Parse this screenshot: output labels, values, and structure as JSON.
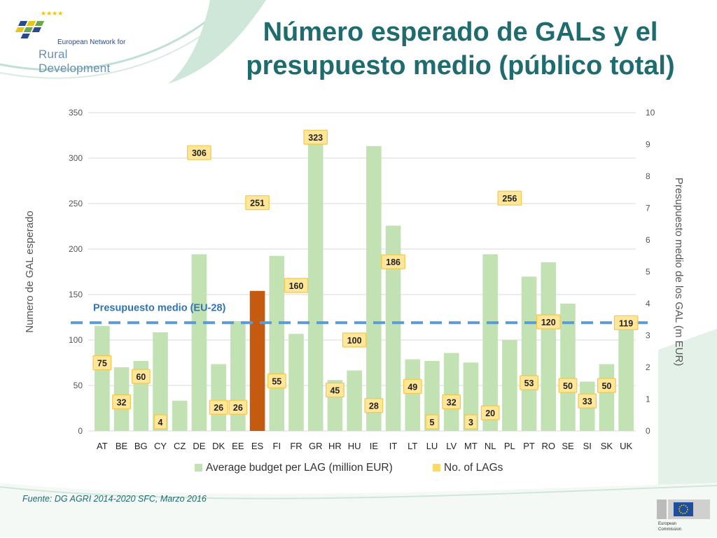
{
  "header": {
    "logo_line1": "European Network for",
    "logo_line2": "Rural Development",
    "title_line1": "Número esperado de GALs y el",
    "title_line2": "presupuesto medio (público total)"
  },
  "footer": {
    "source": "Fuente: DG AGRI 2014-2020 SFC, Marzo 2016",
    "eu_label_line1": "European",
    "eu_label_line2": "Commission"
  },
  "colors": {
    "bar": "#c3e2b4",
    "highlight": "#c55a11",
    "label_bg": "#ffe699",
    "label_border": "#f2c84b",
    "avg_line": "#5b9bd5",
    "title": "#1f6b6e"
  },
  "chart_data": {
    "type": "bar",
    "categories": [
      "AT",
      "BE",
      "BG",
      "CY",
      "CZ",
      "DE",
      "DK",
      "EE",
      "ES",
      "FI",
      "FR",
      "GR",
      "HR",
      "HU",
      "IE",
      "IT",
      "LT",
      "LU",
      "LV",
      "MT",
      "NL",
      "PL",
      "PT",
      "RO",
      "SE",
      "SI",
      "SK",
      "UK"
    ],
    "series": [
      {
        "name": "Average budget per LAG (million EUR)",
        "axis": "right",
        "values": [
          3.3,
          2.0,
          2.2,
          3.1,
          0.95,
          5.55,
          2.1,
          3.45,
          4.4,
          5.5,
          3.05,
          9.45,
          1.6,
          1.9,
          8.95,
          6.45,
          2.25,
          2.2,
          2.45,
          2.15,
          5.55,
          2.85,
          4.85,
          5.3,
          4.0,
          1.55,
          2.1,
          3.4
        ],
        "highlight_category": "ES"
      },
      {
        "name": "No. of LAGs",
        "axis": "left",
        "values": [
          75,
          32,
          60,
          4,
          null,
          306,
          26,
          26,
          251,
          55,
          160,
          323,
          45,
          100,
          28,
          186,
          49,
          5,
          32,
          3,
          20,
          256,
          53,
          120,
          50,
          33,
          50,
          119
        ],
        "display": "labels"
      }
    ],
    "yleft": {
      "label": "Numero de GAL esperado",
      "min": 0,
      "max": 350,
      "ticks": [
        0,
        50,
        100,
        150,
        200,
        250,
        300,
        350
      ]
    },
    "yright": {
      "label": "Presupuesto medio de los GAL (m EUR)",
      "min": 0,
      "max": 10,
      "ticks": [
        0,
        1,
        2,
        3,
        4,
        5,
        6,
        7,
        8,
        9,
        10
      ]
    },
    "average_line": {
      "label": "Presupuesto medio (EU-28)",
      "value": 3.4,
      "axis": "right"
    },
    "legend": [
      {
        "name": "Average budget per LAG (million EUR)",
        "color": "#c3e2b4"
      },
      {
        "name": "No. of LAGs",
        "color": "#ffd966"
      }
    ]
  }
}
